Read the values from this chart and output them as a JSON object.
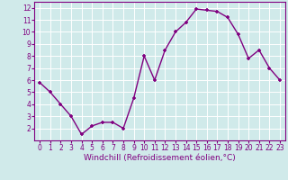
{
  "x": [
    0,
    1,
    2,
    3,
    4,
    5,
    6,
    7,
    8,
    9,
    10,
    11,
    12,
    13,
    14,
    15,
    16,
    17,
    18,
    19,
    20,
    21,
    22,
    23
  ],
  "y": [
    5.8,
    5.0,
    4.0,
    3.0,
    1.5,
    2.2,
    2.5,
    2.5,
    2.0,
    4.5,
    8.0,
    6.0,
    8.5,
    10.0,
    10.8,
    11.9,
    11.8,
    11.7,
    11.2,
    9.8,
    7.8,
    8.5,
    7.0,
    6.0
  ],
  "line_color": "#800080",
  "marker": "+",
  "bg_color": "#d0eaea",
  "grid_color": "#ffffff",
  "xlabel": "Windchill (Refroidissement éolien,°C)",
  "xlim": [
    -0.5,
    23.5
  ],
  "ylim": [
    1.0,
    12.5
  ],
  "yticks": [
    2,
    3,
    4,
    5,
    6,
    7,
    8,
    9,
    10,
    11,
    12
  ],
  "xticks": [
    0,
    1,
    2,
    3,
    4,
    5,
    6,
    7,
    8,
    9,
    10,
    11,
    12,
    13,
    14,
    15,
    16,
    17,
    18,
    19,
    20,
    21,
    22,
    23
  ],
  "tick_fontsize": 5.5,
  "xlabel_fontsize": 6.5,
  "label_color": "#800080",
  "spine_color": "#800080",
  "linewidth": 1.0,
  "markersize": 3.5,
  "markeredgewidth": 1.2
}
